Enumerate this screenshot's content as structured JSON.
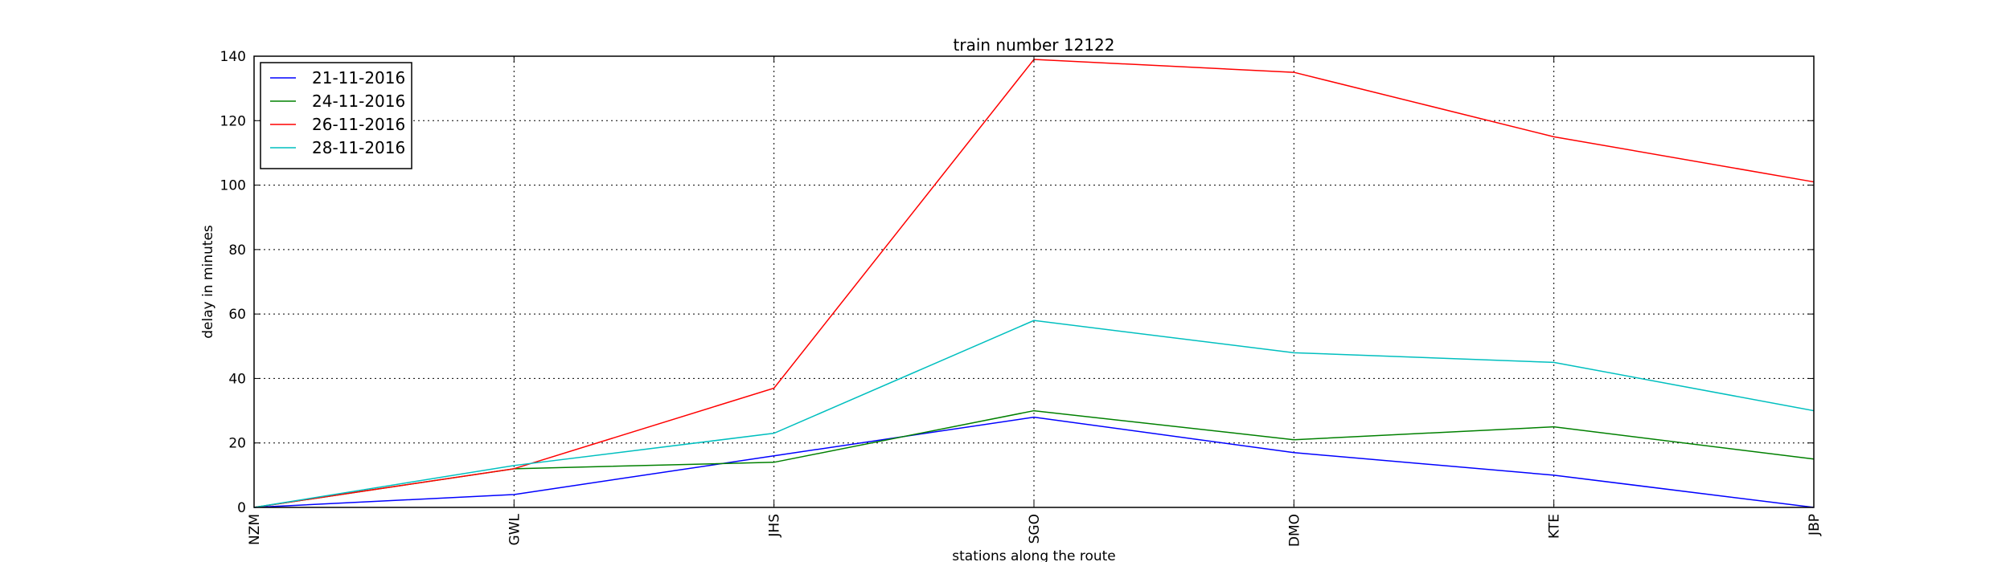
{
  "chart_data": {
    "type": "line",
    "title": "train number 12122",
    "xlabel": "stations along the route",
    "ylabel": "delay in minutes",
    "categories": [
      "NZM",
      "GWL",
      "JHS",
      "SGO",
      "DMO",
      "KTE",
      "JBP"
    ],
    "ylim": [
      0,
      140
    ],
    "yticks": [
      0,
      20,
      40,
      60,
      80,
      100,
      120,
      140
    ],
    "grid": true,
    "legend_position": "top-left",
    "series": [
      {
        "name": "21-11-2016",
        "color": "#0000ff",
        "values": [
          0,
          4,
          16,
          28,
          17,
          10,
          0
        ]
      },
      {
        "name": "24-11-2016",
        "color": "#008000",
        "values": [
          0,
          12,
          14,
          30,
          21,
          25,
          15
        ]
      },
      {
        "name": "26-11-2016",
        "color": "#ff0000",
        "values": [
          0,
          12,
          37,
          139,
          135,
          115,
          101
        ]
      },
      {
        "name": "28-11-2016",
        "color": "#00bfbf",
        "values": [
          0,
          13,
          23,
          58,
          48,
          45,
          30
        ]
      }
    ]
  }
}
